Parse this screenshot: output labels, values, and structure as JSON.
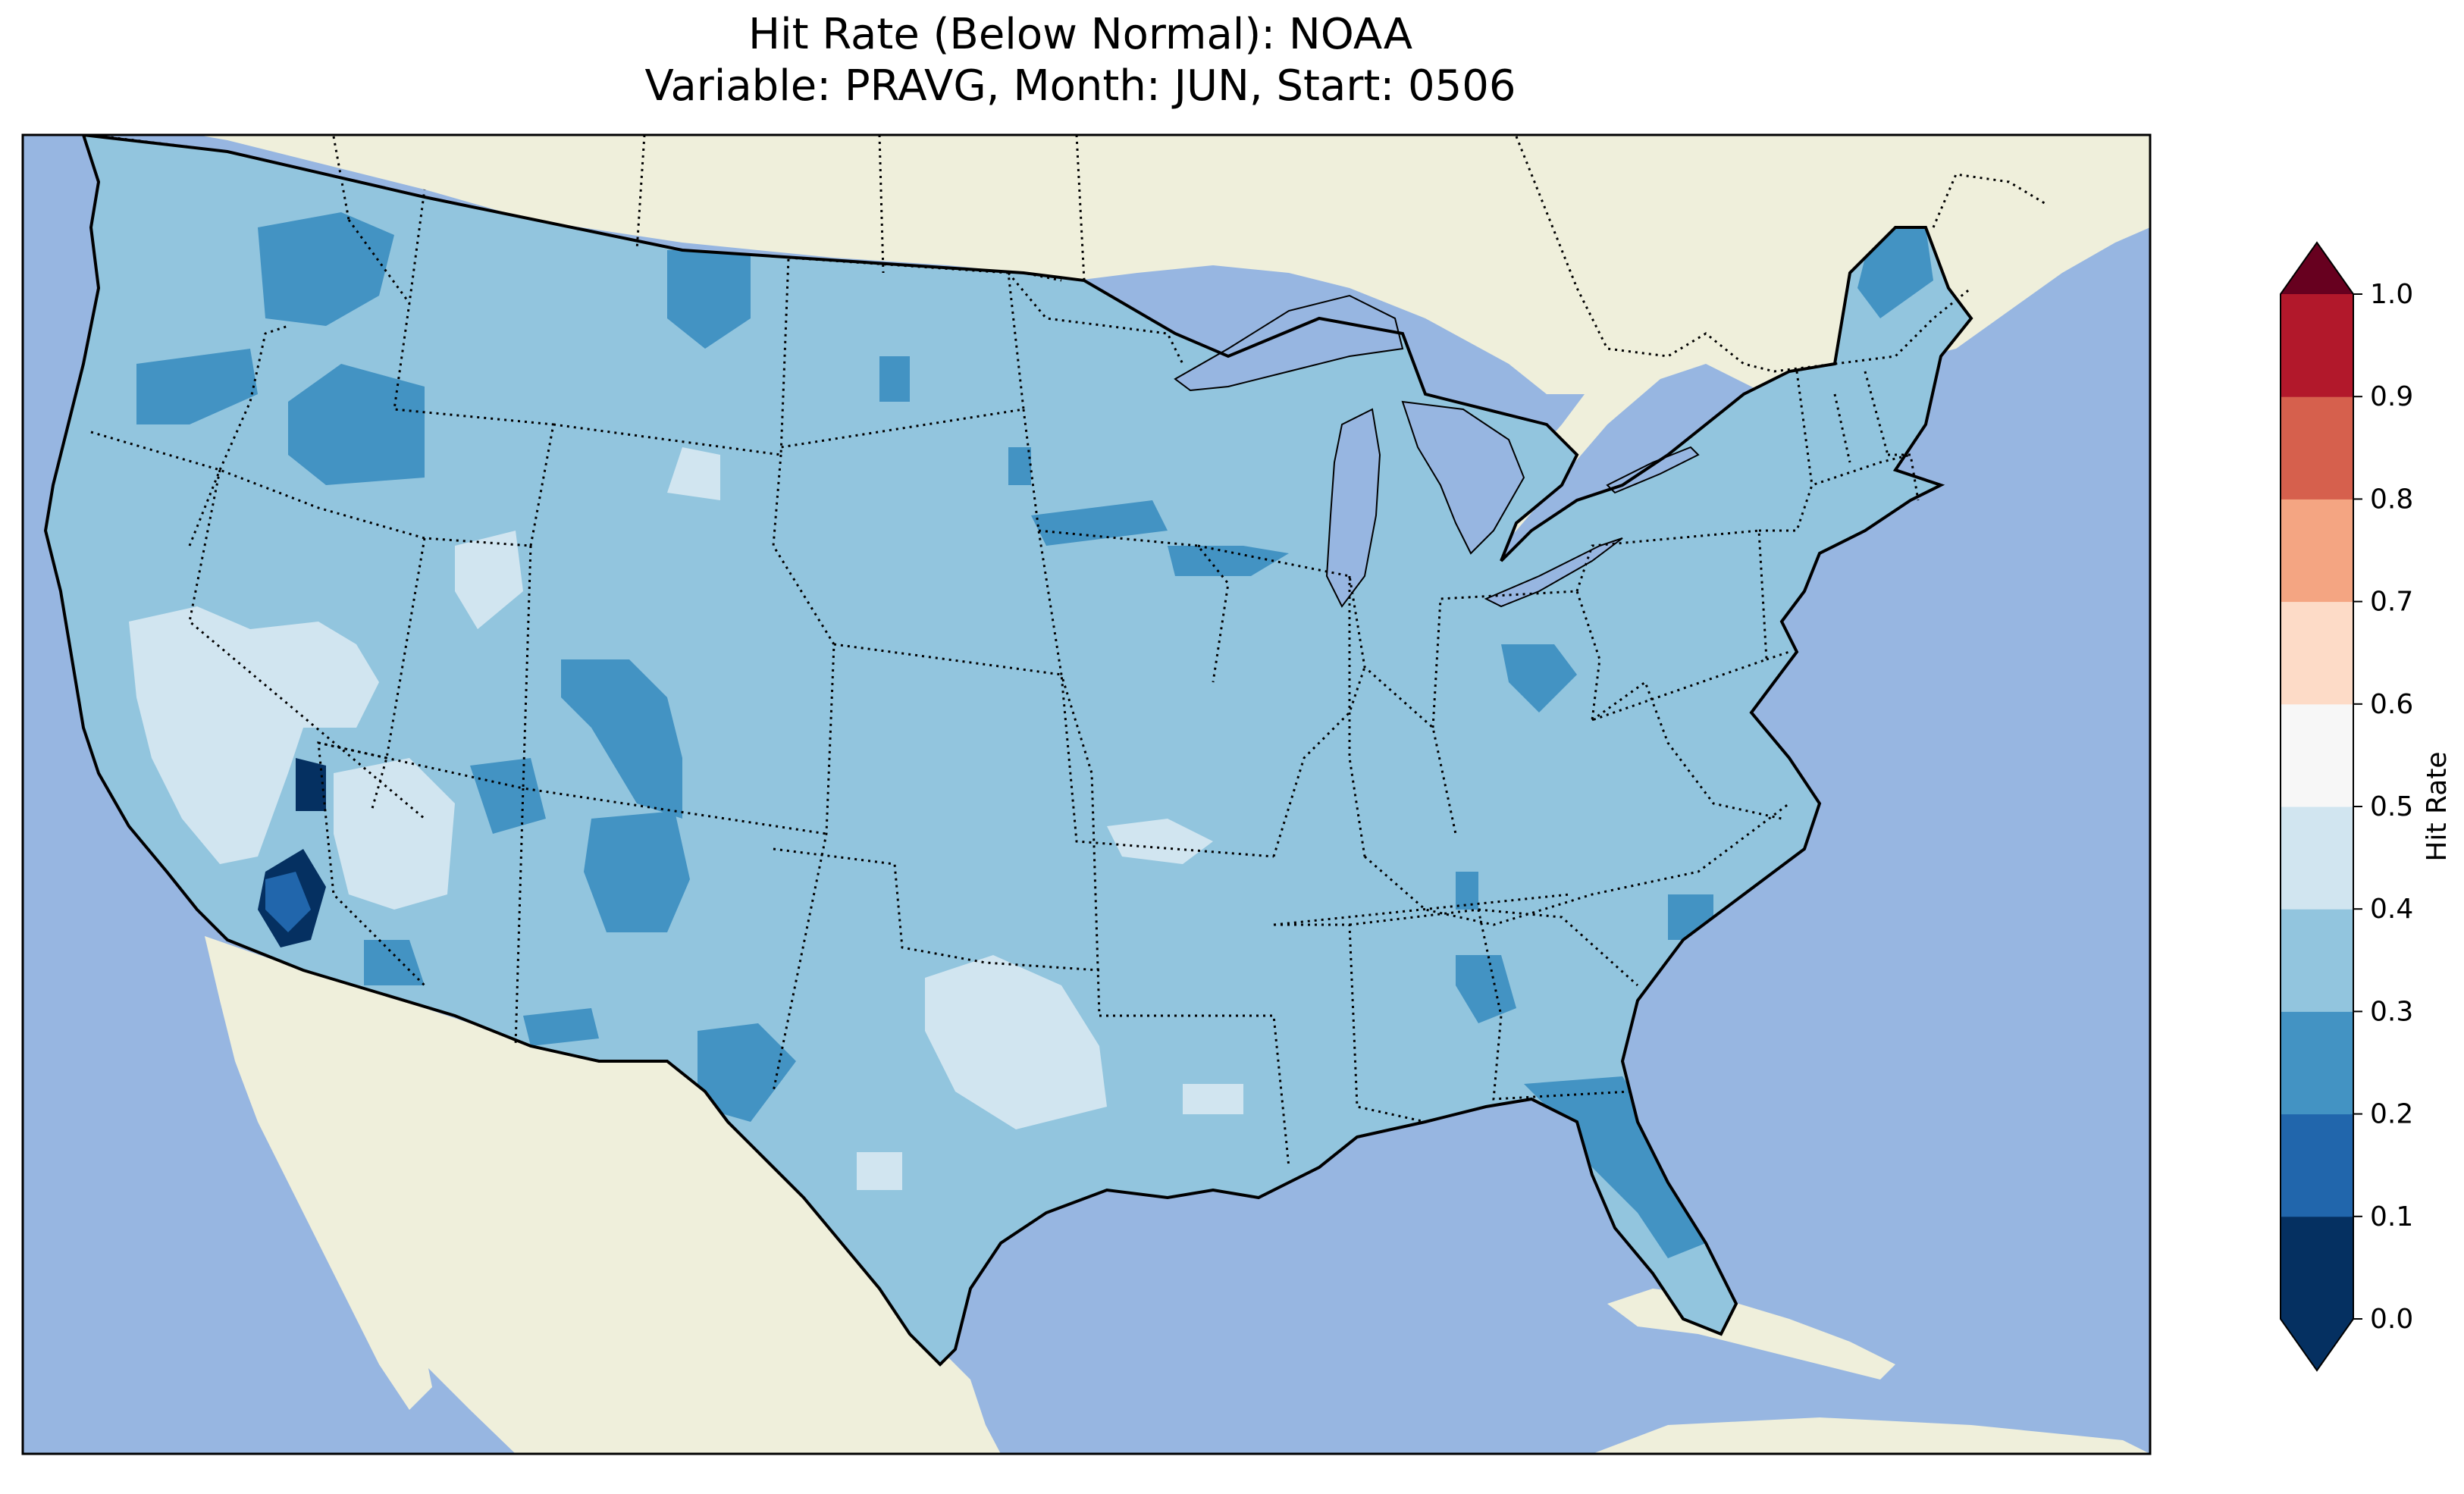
{
  "title": {
    "line1": "Hit Rate (Below Normal): NOAA",
    "line2": "Variable: PRAVG, Month: JUN, Start: 0506"
  },
  "colors": {
    "ocean": "#97b6e1",
    "land": "#efefdb",
    "grid_default": "#a6cde2"
  },
  "colorbar": {
    "label": "Hit Rate",
    "extend": "both",
    "ticks": [
      "0.0",
      "0.1",
      "0.2",
      "0.3",
      "0.4",
      "0.5",
      "0.6",
      "0.7",
      "0.8",
      "0.9",
      "1.0"
    ],
    "bins": [
      {
        "range": [
          0.0,
          0.1
        ],
        "color": "#053061"
      },
      {
        "range": [
          0.1,
          0.2
        ],
        "color": "#2166ac"
      },
      {
        "range": [
          0.2,
          0.3
        ],
        "color": "#4393c3"
      },
      {
        "range": [
          0.3,
          0.4
        ],
        "color": "#92c5de"
      },
      {
        "range": [
          0.4,
          0.5
        ],
        "color": "#d1e5f0"
      },
      {
        "range": [
          0.5,
          0.6
        ],
        "color": "#f7f7f7"
      },
      {
        "range": [
          0.6,
          0.7
        ],
        "color": "#fddbc7"
      },
      {
        "range": [
          0.7,
          0.8
        ],
        "color": "#f4a582"
      },
      {
        "range": [
          0.8,
          0.9
        ],
        "color": "#d6604d"
      },
      {
        "range": [
          0.9,
          1.0
        ],
        "color": "#b2182b"
      }
    ],
    "under_color": "#053061",
    "over_color": "#67001f"
  },
  "chart_data": {
    "type": "heatmap",
    "title": "Hit Rate (Below Normal): NOAA",
    "subtitle": "Variable: PRAVG, Month: JUN, Start: 0506",
    "variable": "PRAVG",
    "month": "JUN",
    "start": "0506",
    "colorbar_label": "Hit Rate",
    "vmin": 0.0,
    "vmax": 1.0,
    "dominant_class": "0.3-0.4",
    "regions": [
      {
        "area": "Contiguous United States (background)",
        "class": "0.3-0.4"
      },
      {
        "area": "Southern California / Nevada border",
        "class": "0.0-0.2"
      },
      {
        "area": "Central California / Nevada",
        "class": "0.4-0.5"
      },
      {
        "area": "Southern Nevada / Utah",
        "class": "0.4-0.5"
      },
      {
        "area": "West Texas / Southwest Oklahoma",
        "class": "0.4-0.5"
      },
      {
        "area": "Oregon / Washington / Idaho",
        "class": "0.2-0.3"
      },
      {
        "area": "Western Colorado / New Mexico",
        "class": "0.2-0.3"
      },
      {
        "area": "Florida Peninsula",
        "class": "0.2-0.3"
      },
      {
        "area": "Northern Maine",
        "class": "0.2-0.3"
      },
      {
        "area": "Southern Minnesota / Wisconsin",
        "class": "0.2-0.3"
      },
      {
        "area": "Southwest Ohio",
        "class": "0.2-0.3"
      },
      {
        "area": "Montana",
        "class": "0.2-0.3"
      },
      {
        "area": "Alabama",
        "class": "0.2-0.3"
      },
      {
        "area": "Southwest Texas",
        "class": "0.2-0.3"
      }
    ]
  }
}
